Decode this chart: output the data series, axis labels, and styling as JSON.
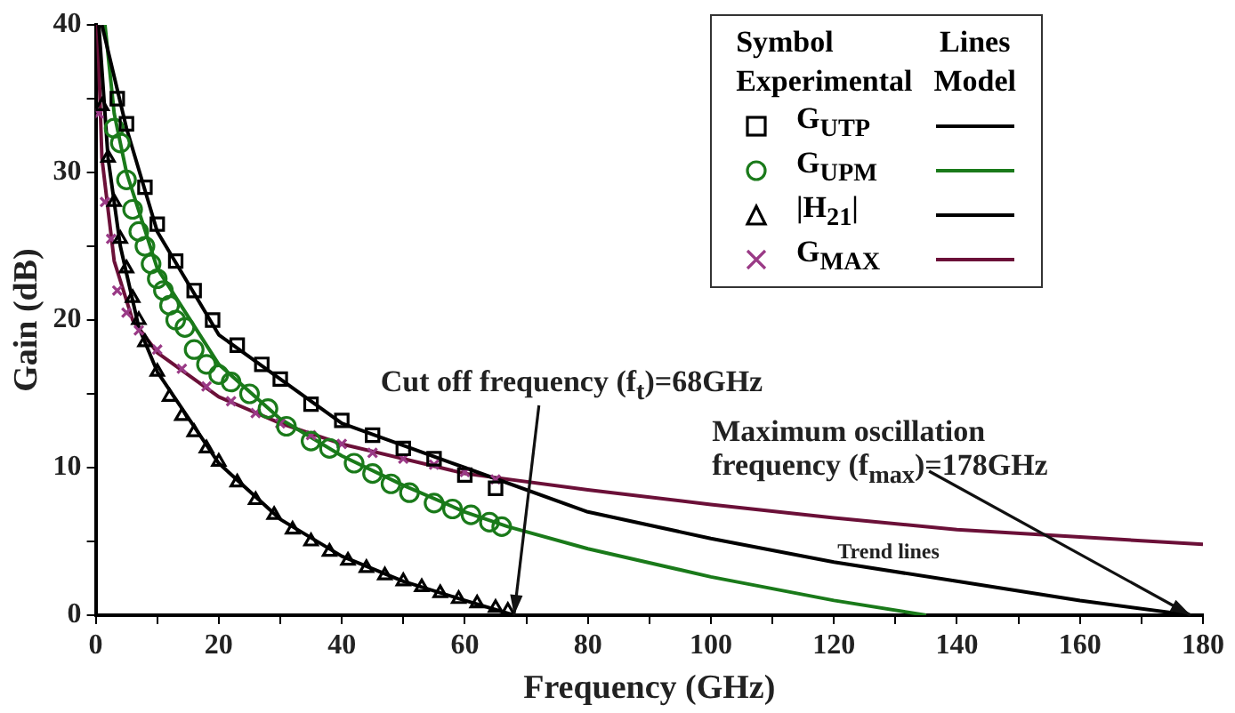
{
  "chart_data": {
    "type": "scatter",
    "xlabel": "Frequency (GHz)",
    "ylabel": "Gain (dB)",
    "legend_title": "Symbol Experimental",
    "xlim": [
      0,
      180
    ],
    "xticks": [
      0,
      {
        "value": 10,
        "label": null
      },
      20,
      {
        "value": 30,
        "label": null
      },
      40,
      {
        "value": 50,
        "label": null
      },
      60,
      {
        "value": 70,
        "label": null
      },
      80,
      {
        "value": 90,
        "label": null
      },
      100,
      {
        "value": 110,
        "label": null
      },
      120,
      {
        "value": 130,
        "label": null
      },
      140,
      {
        "value": 150,
        "label": null
      },
      160,
      {
        "value": 170,
        "label": null
      },
      180
    ],
    "ylim": [
      0,
      40
    ],
    "yticks": [
      0,
      {
        "value": 5,
        "label": null
      },
      10,
      {
        "value": 15,
        "label": null
      },
      20,
      {
        "value": 25,
        "label": null
      },
      30,
      {
        "value": 35,
        "label": null
      },
      40
    ],
    "grid": false,
    "legend": "top right",
    "series": [
      {
        "name": "G$_{UTP}$",
        "type": "scatter",
        "marker": "square",
        "color": "#000000",
        "x": [
          3.5,
          5,
          8,
          10,
          13,
          16,
          19,
          23,
          27,
          30,
          35,
          40,
          45,
          50,
          55,
          60,
          65
        ],
        "values": [
          35,
          33.3,
          29,
          26.5,
          24,
          22,
          20,
          18.3,
          17,
          16,
          14.3,
          13.2,
          12.2,
          11.3,
          10.6,
          9.5,
          8.6
        ]
      },
      {
        "name": "G$_{UPM}$",
        "type": "scatter",
        "marker": "circle",
        "color": "#1a7a1a",
        "x": [
          3,
          4,
          5,
          6,
          7,
          8,
          9,
          10,
          11,
          12,
          13,
          14.5,
          16,
          18,
          20,
          22,
          25,
          28,
          31,
          35,
          38,
          42,
          45,
          48,
          51,
          55,
          58,
          61,
          64,
          66
        ],
        "values": [
          33,
          32,
          29.5,
          27.5,
          26,
          25,
          23.8,
          22.8,
          22,
          21,
          20,
          19.5,
          18,
          17,
          16.3,
          15.8,
          15,
          14,
          12.8,
          11.8,
          11.3,
          10.3,
          9.6,
          8.9,
          8.3,
          7.6,
          7.2,
          6.8,
          6.3,
          6
        ]
      },
      {
        "name": "|H$_{21}$|",
        "type": "scatter",
        "marker": "triangle",
        "color": "#000000",
        "x": [
          1,
          2,
          3,
          4,
          5,
          6,
          7,
          8,
          10,
          12,
          14,
          16,
          18,
          20,
          23,
          26,
          29,
          32,
          35,
          38,
          41,
          44,
          47,
          50,
          53,
          56,
          59,
          62,
          65,
          67
        ],
        "values": [
          34.5,
          31,
          28,
          25.5,
          23.5,
          21.5,
          20,
          18.5,
          16.5,
          14.8,
          13.5,
          12.4,
          11.3,
          10.4,
          9,
          7.8,
          6.8,
          5.8,
          5,
          4.3,
          3.7,
          3.2,
          2.7,
          2.3,
          1.9,
          1.5,
          1.1,
          0.8,
          0.5,
          0.3
        ]
      },
      {
        "name": "G$_{MAX}$",
        "type": "scatter",
        "marker": "cross",
        "color": "#9a3a86",
        "x": [
          0.5,
          1.5,
          2.5,
          3.5,
          5,
          7,
          10,
          14,
          18,
          22,
          26,
          30,
          35,
          40,
          45,
          50,
          55,
          60,
          65
        ],
        "values": [
          34,
          28,
          25.5,
          22,
          20.5,
          19.3,
          18,
          16.7,
          15.5,
          14.5,
          13.7,
          13,
          12.2,
          11.6,
          11,
          10.6,
          10.2,
          9.7,
          9.2
        ]
      },
      {
        "type": "line",
        "marker": "none",
        "color": "#000000",
        "x": [
          1,
          5,
          10,
          20,
          40,
          60,
          80,
          100,
          120,
          140,
          160,
          178
        ],
        "values": [
          40,
          33,
          26,
          19,
          13,
          10,
          7,
          5.2,
          3.6,
          2.3,
          1,
          0
        ]
      },
      {
        "type": "line",
        "marker": "none",
        "color": "#1a7a1a",
        "x": [
          1.5,
          3,
          5,
          10,
          20,
          30,
          40,
          50,
          60,
          67,
          80,
          100,
          120,
          135
        ],
        "values": [
          40,
          34,
          30,
          23.5,
          17,
          13.3,
          10.8,
          8.8,
          7,
          6,
          4.5,
          2.6,
          1,
          0
        ]
      },
      {
        "type": "line",
        "marker": "none",
        "color": "#000000",
        "x": [
          0.5,
          2,
          4,
          7,
          10,
          20,
          30,
          40,
          50,
          60,
          68
        ],
        "values": [
          40,
          31,
          25,
          19.5,
          16.5,
          10.3,
          6.5,
          4,
          2.3,
          1,
          0
        ]
      },
      {
        "type": "line",
        "marker": "none",
        "color": "#6b1038",
        "x": [
          0.3,
          1,
          3,
          6,
          10,
          20,
          30,
          40,
          60,
          80,
          100,
          120,
          140,
          160,
          180
        ],
        "values": [
          40,
          31,
          24,
          20,
          17.8,
          14.8,
          13,
          11.6,
          9.6,
          8.5,
          7.5,
          6.6,
          5.8,
          5.3,
          4.8
        ]
      }
    ],
    "annotations": [
      "Lines Model",
      {
        "text": "Cut off frequency (f$_{t}$)=68GHz",
        "x": 68,
        "y": 0
      },
      {
        "text": "Maximum oscillation frequency (f$_{max}$)=178GHz",
        "x": 178,
        "y": 0
      },
      "Trend lines"
    ]
  }
}
